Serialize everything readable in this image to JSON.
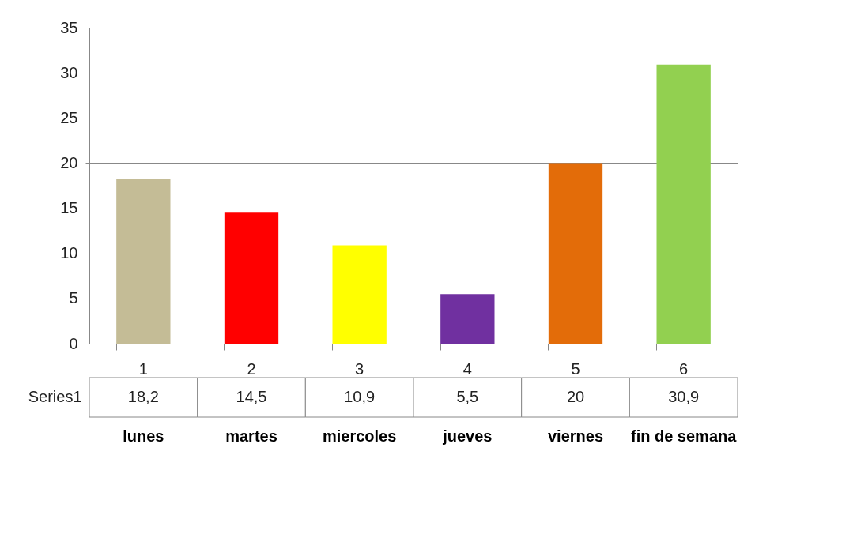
{
  "chart_data": {
    "type": "bar",
    "categories": [
      "1",
      "2",
      "3",
      "4",
      "5",
      "6"
    ],
    "series": [
      {
        "name": "Series1",
        "values": [
          18.2,
          14.5,
          10.9,
          5.5,
          20,
          30.9
        ],
        "value_labels": [
          "18,2",
          "14,5",
          "10,9",
          "5,5",
          "20",
          "30,9"
        ]
      }
    ],
    "colors": [
      "#c4bc96",
      "#ff0000",
      "#ffff00",
      "#7030a0",
      "#e36c09",
      "#92d050"
    ],
    "ylim": [
      0,
      35
    ],
    "yticks": [
      0,
      5,
      10,
      15,
      20,
      25,
      30,
      35
    ],
    "grid": "y",
    "annotations": [
      "lunes",
      "martes",
      "miercoles",
      "jueves",
      "viernes",
      "fin de semana"
    ]
  }
}
